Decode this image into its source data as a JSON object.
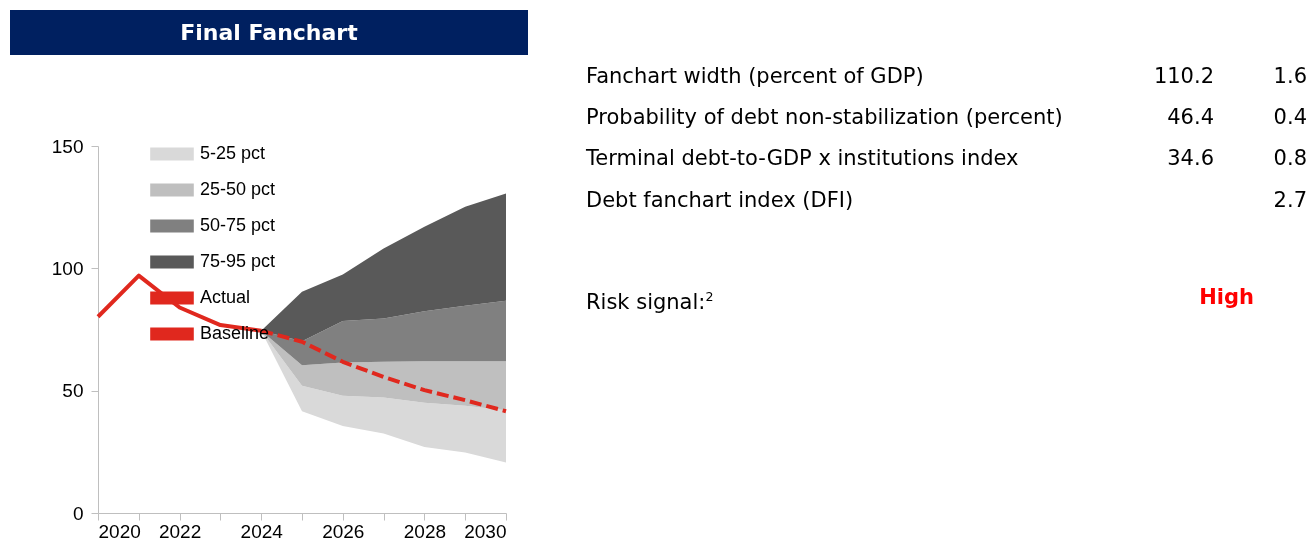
{
  "chart_data": [
    {
      "type": "area",
      "title": "Final Fanchart",
      "xlim": [
        2020,
        2030
      ],
      "xticks": [
        2020,
        {
          "value": 2021,
          "label": null
        },
        2022,
        {
          "value": 2023,
          "label": null
        },
        2024,
        {
          "value": 2025,
          "label": null
        },
        2026,
        {
          "value": 2027,
          "label": null
        },
        2028,
        {
          "value": 2029,
          "label": null
        },
        2030
      ],
      "ylim": [
        0,
        150
      ],
      "yticks": [
        0,
        50,
        100,
        150
      ],
      "grid": false,
      "legend": "top left",
      "series": [
        {
          "name": "5-25 pct",
          "type": "area",
          "color": "#d9d9d9",
          "x": [
            2024,
            2025,
            2026,
            2027,
            2028,
            2029,
            2030
          ],
          "values": [
            null,
            null,
            null,
            null,
            null,
            null,
            null
          ],
          "lower": [
            74.5,
            41.6,
            35.6,
            32.5,
            27,
            24.7,
            20.6
          ],
          "upper": [
            74.5,
            52,
            47.9,
            47.2,
            45.1,
            43.8,
            42
          ]
        },
        {
          "name": "25-50 pct",
          "type": "area",
          "color": "#bfbfbf",
          "x": [
            2024,
            2025,
            2026,
            2027,
            2028,
            2029,
            2030
          ],
          "values": [
            null,
            null,
            null,
            null,
            null,
            null,
            null
          ],
          "lower": [
            74.5,
            52,
            47.9,
            47.2,
            45.1,
            43.8,
            42
          ],
          "upper": [
            74.5,
            60.4,
            61.5,
            61.8,
            62,
            62,
            62
          ]
        },
        {
          "name": "50-75 pct",
          "type": "area",
          "color": "#808080",
          "x": [
            2024,
            2025,
            2026,
            2027,
            2028,
            2029,
            2030
          ],
          "values": [
            null,
            null,
            null,
            null,
            null,
            null,
            null
          ],
          "lower": [
            74.5,
            60.4,
            61.5,
            61.8,
            62,
            62,
            62
          ],
          "upper": [
            74.5,
            70.2,
            78.5,
            79.5,
            82.5,
            84.7,
            86.7
          ]
        },
        {
          "name": "75-95 pct",
          "type": "area",
          "color": "#595959",
          "x": [
            2024,
            2025,
            2026,
            2027,
            2028,
            2029,
            2030
          ],
          "values": [
            null,
            null,
            null,
            null,
            null,
            null,
            null
          ],
          "lower": [
            74.5,
            70.2,
            78.5,
            79.5,
            82.5,
            84.7,
            86.7
          ],
          "upper": [
            74.5,
            90.4,
            97.5,
            108.1,
            117,
            125.2,
            130.6
          ]
        },
        {
          "name": "Actual",
          "type": "line",
          "color": "#e0281e",
          "line_style": "solid",
          "x": [
            2020,
            2021,
            2022,
            2023,
            2024
          ],
          "values": [
            80.2,
            97,
            84,
            76.8,
            74.5
          ]
        },
        {
          "name": "Baseline",
          "type": "line",
          "color": "#e0281e",
          "line_style": "dashed",
          "x": [
            2024,
            2025,
            2026,
            2027,
            2028,
            2029,
            2030
          ],
          "values": [
            74.5,
            70,
            61.8,
            55.6,
            50.2,
            46.1,
            41.6
          ]
        }
      ]
    },
    {
      "type": "other",
      "annotations": [
        "Fanchart width (percent of GDP)",
        "110.2",
        "1.6",
        "Probability of debt non-stabilization (percent)",
        "46.4",
        "0.4",
        "Terminal debt-to-GDP x institutions index",
        "34.6",
        "0.8",
        "Debt fanchart index (DFI)",
        "2.7",
        "Risk signal:$^{2}$",
        "High"
      ]
    }
  ]
}
